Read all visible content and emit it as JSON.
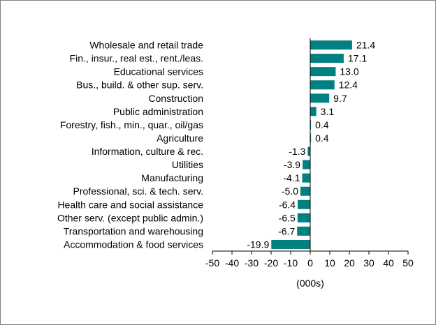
{
  "chart_data": {
    "type": "bar",
    "orientation": "horizontal",
    "categories": [
      "Wholesale and retail trade",
      "Fin., insur., real est., rent./leas.",
      "Educational services",
      "Bus., build. & other sup. serv.",
      "Construction",
      "Public administration",
      "Forestry, fish., min., quar., oil/gas",
      "Agriculture",
      "Information, culture & rec.",
      "Utilities",
      "Manufacturing",
      "Professional, sci. & tech. serv.",
      "Health care and social assistance",
      "Other serv. (except public admin.)",
      "Transportation and warehousing",
      "Accommodation & food services"
    ],
    "values": [
      21.4,
      17.1,
      13.0,
      12.4,
      9.7,
      3.1,
      0.4,
      0.4,
      -1.3,
      -3.9,
      -4.1,
      -5.0,
      -6.4,
      -6.5,
      -6.7,
      -19.9
    ],
    "value_labels": [
      "21.4",
      "17.1",
      "13.0",
      "12.4",
      "9.7",
      "3.1",
      "0.4",
      "0.4",
      "-1.3",
      "-3.9",
      "-4.1",
      "-5.0",
      "-6.4",
      "-6.5",
      "-6.7",
      "-19.9"
    ],
    "xlabel": "(000s)",
    "xlim": [
      -50,
      50
    ],
    "xticks": [
      "-50",
      "-40",
      "-30",
      "-20",
      "-10",
      "0",
      "10",
      "20",
      "30",
      "40",
      "50"
    ],
    "grid": false,
    "legend": "none",
    "bar_color": "#008080"
  }
}
